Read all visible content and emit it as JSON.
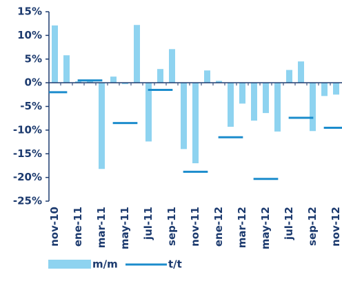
{
  "chart_data": {
    "type": "bar",
    "categories": [
      "nov-10",
      null,
      "ene-11",
      null,
      "mar-11",
      null,
      "may-11",
      null,
      "jul-11",
      null,
      "sep-11",
      null,
      "nov-11",
      null,
      "ene-12",
      null,
      "mar-12",
      null,
      "may-12",
      null,
      "jul-12",
      null,
      "sep-12",
      null,
      "nov-12"
    ],
    "series": [
      {
        "name": "m/m",
        "color": "#8ed3f0",
        "values": [
          12.1,
          5.8,
          0.3,
          0.5,
          -18.2,
          1.3,
          -0.3,
          12.2,
          -12.4,
          2.9,
          7.1,
          -14.0,
          -17.0,
          2.6,
          0.4,
          -9.3,
          -4.4,
          -8.0,
          -6.4,
          -10.3,
          2.7,
          4.5,
          -10.2,
          -2.8,
          -2.5
        ]
      },
      {
        "name": "t/t",
        "color": "#1b8ccc",
        "values": [
          -2.0,
          null,
          null,
          0.5,
          null,
          null,
          -8.5,
          null,
          null,
          -1.5,
          null,
          null,
          -18.8,
          null,
          null,
          -11.5,
          null,
          null,
          -20.3,
          null,
          null,
          -7.4,
          null,
          null,
          -9.5
        ]
      }
    ],
    "ylim": [
      -25,
      15
    ],
    "yticks": [
      {
        "value": -25,
        "label": "-25%"
      },
      {
        "value": -20,
        "label": "-20%"
      },
      {
        "value": -15,
        "label": "-15%"
      },
      {
        "value": -10,
        "label": "-10%"
      },
      {
        "value": -5,
        "label": "-5%"
      },
      {
        "value": 0,
        "label": "0%"
      },
      {
        "value": 5,
        "label": "5%"
      },
      {
        "value": 10,
        "label": "10%"
      },
      {
        "value": 15,
        "label": "15%"
      }
    ]
  }
}
